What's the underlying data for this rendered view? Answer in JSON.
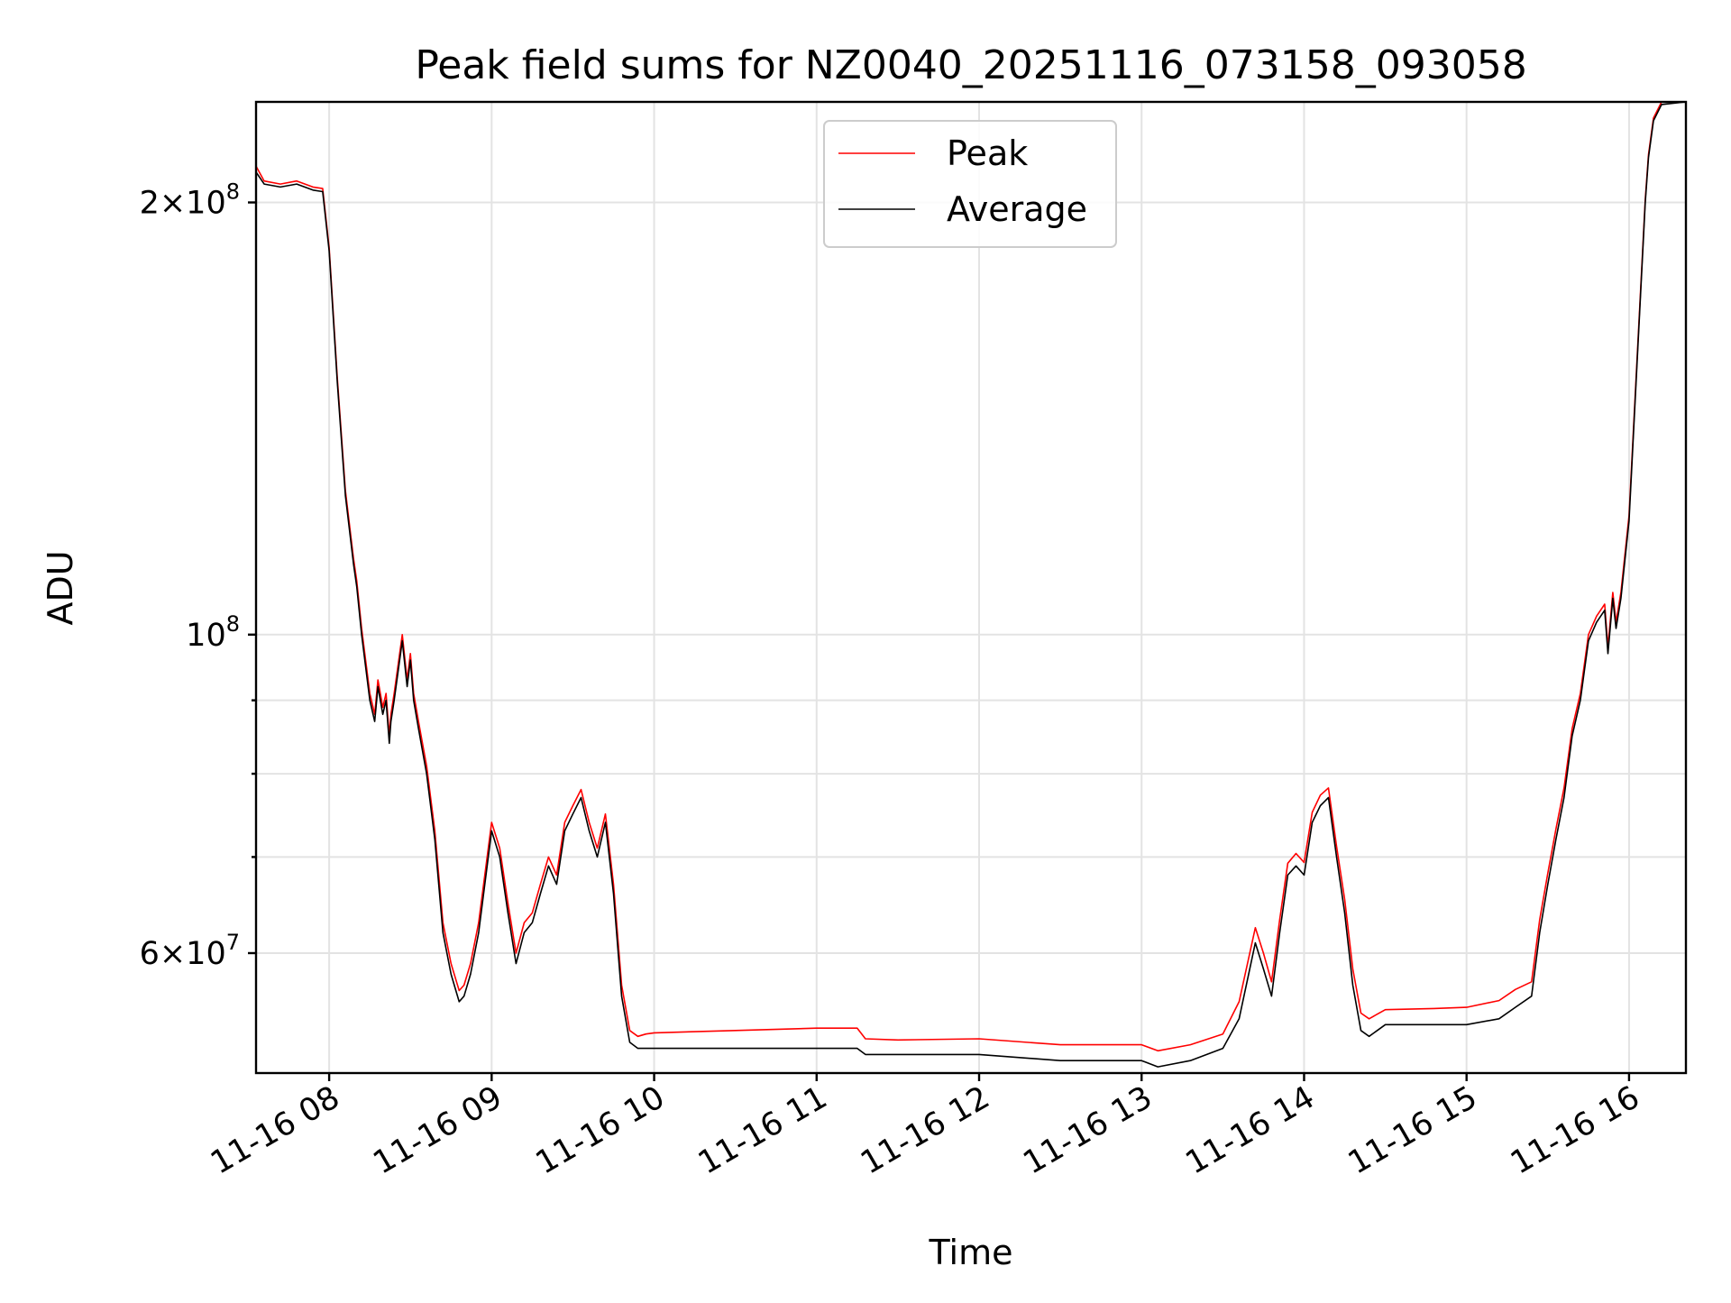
{
  "chart_data": {
    "type": "line",
    "title": "Peak field sums for NZ0040_20251116_073158_093058",
    "xlabel": "Time",
    "ylabel": "ADU",
    "yscale": "log",
    "ylim": [
      49500000,
      235000000
    ],
    "xlim_hours": [
      7.55,
      16.35
    ],
    "x_tick_values": [
      8,
      9,
      10,
      11,
      12,
      13,
      14,
      15,
      16
    ],
    "x_tick_labels": [
      "11-16 08",
      "11-16 09",
      "11-16 10",
      "11-16 11",
      "11-16 12",
      "11-16 13",
      "11-16 14",
      "11-16 15",
      "11-16 16"
    ],
    "y_major_ticks": [
      {
        "value": 60000000,
        "mantissa": "6",
        "base": "10",
        "exp": "7"
      },
      {
        "value": 100000000,
        "mantissa": "",
        "base": "10",
        "exp": "8"
      },
      {
        "value": 200000000,
        "mantissa": "2",
        "base": "10",
        "exp": "8"
      }
    ],
    "y_minor_grid": [
      70000000,
      80000000,
      90000000
    ],
    "legend": {
      "position": "upper-center",
      "entries": [
        {
          "label": "Peak",
          "color": "#ff0000"
        },
        {
          "label": "Average",
          "color": "#000000"
        }
      ]
    },
    "grid": true,
    "series": [
      {
        "name": "Average",
        "color": "#000000",
        "x": [
          7.55,
          7.6,
          7.7,
          7.8,
          7.9,
          7.96,
          8.0,
          8.05,
          8.1,
          8.15,
          8.17,
          8.2,
          8.25,
          8.28,
          8.3,
          8.33,
          8.35,
          8.37,
          8.38,
          8.4,
          8.45,
          8.48,
          8.5,
          8.52,
          8.55,
          8.6,
          8.65,
          8.7,
          8.75,
          8.8,
          8.83,
          8.87,
          8.92,
          9.0,
          9.05,
          9.1,
          9.15,
          9.2,
          9.25,
          9.3,
          9.35,
          9.4,
          9.45,
          9.5,
          9.55,
          9.6,
          9.65,
          9.7,
          9.75,
          9.8,
          9.85,
          9.9,
          9.95,
          10.0,
          10.5,
          11.0,
          11.25,
          11.3,
          11.5,
          12.0,
          12.5,
          13.0,
          13.1,
          13.3,
          13.5,
          13.6,
          13.7,
          13.75,
          13.8,
          13.85,
          13.9,
          13.95,
          14.0,
          14.05,
          14.1,
          14.15,
          14.2,
          14.25,
          14.3,
          14.35,
          14.4,
          14.45,
          14.5,
          14.8,
          15.0,
          15.2,
          15.3,
          15.4,
          15.45,
          15.5,
          15.55,
          15.6,
          15.65,
          15.7,
          15.75,
          15.8,
          15.85,
          15.87,
          15.9,
          15.92,
          15.95,
          16.0,
          16.05,
          16.1,
          16.12,
          16.15,
          16.2,
          16.35
        ],
        "values": [
          210000000,
          206000000,
          205000000,
          206000000,
          204000000,
          203500000,
          185000000,
          150000000,
          125000000,
          112000000,
          108000000,
          100000000,
          90000000,
          87000000,
          92000000,
          88000000,
          90000000,
          84000000,
          87000000,
          90000000,
          99000000,
          92000000,
          96000000,
          90000000,
          86000000,
          80000000,
          72000000,
          62000000,
          58000000,
          55500000,
          56000000,
          58000000,
          62000000,
          73000000,
          70000000,
          64000000,
          59000000,
          62000000,
          63000000,
          66000000,
          69000000,
          67000000,
          73000000,
          75000000,
          77000000,
          73000000,
          70000000,
          74000000,
          66000000,
          56000000,
          52000000,
          51500000,
          51500000,
          51500000,
          51500000,
          51500000,
          51500000,
          51000000,
          51000000,
          51000000,
          50500000,
          50500000,
          50000000,
          50500000,
          51500000,
          54000000,
          61000000,
          58500000,
          56000000,
          62000000,
          68000000,
          69000000,
          68000000,
          74000000,
          76000000,
          77000000,
          70000000,
          64000000,
          57000000,
          53000000,
          52500000,
          53000000,
          53500000,
          53500000,
          53500000,
          54000000,
          55000000,
          56000000,
          62000000,
          67000000,
          72000000,
          77000000,
          85000000,
          90000000,
          99000000,
          102000000,
          104000000,
          97000000,
          106000000,
          101000000,
          106000000,
          120000000,
          155000000,
          200000000,
          215000000,
          228000000,
          234000000,
          235000000
        ]
      },
      {
        "name": "Peak",
        "color": "#ff0000",
        "x": [
          7.55,
          7.6,
          7.7,
          7.8,
          7.9,
          7.96,
          8.0,
          8.05,
          8.1,
          8.15,
          8.17,
          8.2,
          8.25,
          8.28,
          8.3,
          8.33,
          8.35,
          8.37,
          8.38,
          8.4,
          8.45,
          8.48,
          8.5,
          8.52,
          8.55,
          8.6,
          8.65,
          8.7,
          8.75,
          8.8,
          8.83,
          8.87,
          8.92,
          9.0,
          9.05,
          9.1,
          9.15,
          9.2,
          9.25,
          9.3,
          9.35,
          9.4,
          9.45,
          9.5,
          9.55,
          9.6,
          9.65,
          9.7,
          9.75,
          9.8,
          9.85,
          9.9,
          9.95,
          10.0,
          10.5,
          11.0,
          11.25,
          11.3,
          11.5,
          12.0,
          12.5,
          13.0,
          13.1,
          13.3,
          13.5,
          13.6,
          13.7,
          13.75,
          13.8,
          13.85,
          13.9,
          13.95,
          14.0,
          14.05,
          14.1,
          14.15,
          14.2,
          14.25,
          14.3,
          14.35,
          14.4,
          14.45,
          14.5,
          14.8,
          15.0,
          15.2,
          15.3,
          15.4,
          15.45,
          15.5,
          15.55,
          15.6,
          15.65,
          15.7,
          15.75,
          15.8,
          15.85,
          15.87,
          15.9,
          15.92,
          15.95,
          16.0,
          16.05,
          16.1,
          16.12,
          16.15,
          16.2,
          16.35
        ],
        "values": [
          212000000,
          207000000,
          206000000,
          207000000,
          205000000,
          204500000,
          186000000,
          151000000,
          126000000,
          113000000,
          109000000,
          101000000,
          91000000,
          88000000,
          93000000,
          89000000,
          91000000,
          85000000,
          88000000,
          91000000,
          100000000,
          93000000,
          97000000,
          91000000,
          87000000,
          81000000,
          73000000,
          63000000,
          59000000,
          56500000,
          57000000,
          59000000,
          63000000,
          74000000,
          71000000,
          65000000,
          60000000,
          63000000,
          64000000,
          67000000,
          70000000,
          68000000,
          74000000,
          76000000,
          78000000,
          74000000,
          71000000,
          75000000,
          67000000,
          57000000,
          53000000,
          52500000,
          52700000,
          52800000,
          53000000,
          53200000,
          53200000,
          52300000,
          52200000,
          52300000,
          51800000,
          51800000,
          51300000,
          51800000,
          52700000,
          55500000,
          62500000,
          60000000,
          57300000,
          63300000,
          69300000,
          70400000,
          69400000,
          75200000,
          77300000,
          78200000,
          71200000,
          65400000,
          58500000,
          54500000,
          54000000,
          54400000,
          54800000,
          54900000,
          55000000,
          55600000,
          56600000,
          57300000,
          63300000,
          68200000,
          73200000,
          78200000,
          86000000,
          91000000,
          100000000,
          103000000,
          105000000,
          98000000,
          107000000,
          102000000,
          107000000,
          121000000,
          156000000,
          201000000,
          216000000,
          229000000,
          235000000,
          235000000
        ]
      }
    ]
  }
}
